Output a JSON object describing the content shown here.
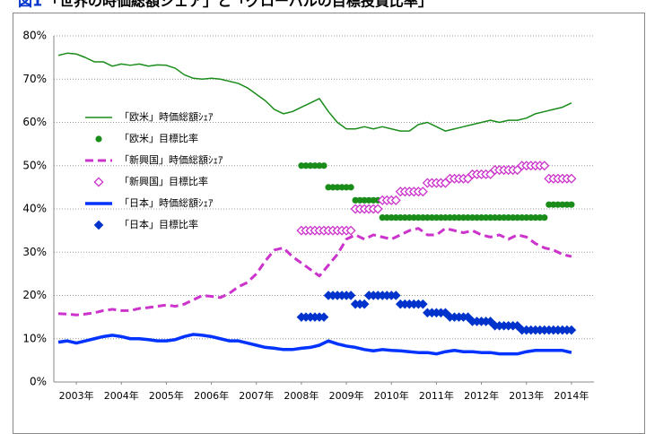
{
  "chart_data": {
    "type": "line",
    "figure_label": "図1",
    "title": "「世界の時価総額シェア」と「グローバルの目標投資比率」",
    "xlim": [
      2002.5,
      2014.5
    ],
    "xticks": [
      {
        "value": 2003,
        "label": "2003年"
      },
      {
        "value": 2004,
        "label": "2004年"
      },
      {
        "value": 2005,
        "label": "2005年"
      },
      {
        "value": 2006,
        "label": "2006年"
      },
      {
        "value": 2007,
        "label": "2007年"
      },
      {
        "value": 2008,
        "label": "2008年"
      },
      {
        "value": 2009,
        "label": "2009年"
      },
      {
        "value": 2010,
        "label": "2010年"
      },
      {
        "value": 2011,
        "label": "2011年"
      },
      {
        "value": 2012,
        "label": "2012年"
      },
      {
        "value": 2013,
        "label": "2013年"
      },
      {
        "value": 2014,
        "label": "2014年"
      }
    ],
    "ylim": [
      0,
      80
    ],
    "yticks": [
      {
        "value": 0,
        "label": "0%"
      },
      {
        "value": 10,
        "label": "10%"
      },
      {
        "value": 20,
        "label": "20%"
      },
      {
        "value": 30,
        "label": "30%"
      },
      {
        "value": 40,
        "label": "40%"
      },
      {
        "value": 50,
        "label": "50%"
      },
      {
        "value": 60,
        "label": "60%"
      },
      {
        "value": 70,
        "label": "70%"
      },
      {
        "value": 80,
        "label": "80%"
      }
    ],
    "grid": true,
    "legend": "upper left",
    "series": [
      {
        "name": "「欧米」時価総額ｼｪｱ",
        "color": "#1a8c1a",
        "width": 1.5,
        "x": [
          2002.6,
          2002.8,
          2003.0,
          2003.2,
          2003.4,
          2003.6,
          2003.8,
          2004.0,
          2004.2,
          2004.4,
          2004.6,
          2004.8,
          2005.0,
          2005.2,
          2005.4,
          2005.6,
          2005.8,
          2006.0,
          2006.2,
          2006.4,
          2006.6,
          2006.8,
          2007.0,
          2007.2,
          2007.4,
          2007.6,
          2007.8,
          2008.0,
          2008.2,
          2008.4,
          2008.6,
          2008.8,
          2009.0,
          2009.2,
          2009.4,
          2009.6,
          2009.8,
          2010.0,
          2010.2,
          2010.4,
          2010.6,
          2010.8,
          2011.0,
          2011.2,
          2011.4,
          2011.6,
          2011.8,
          2012.0,
          2012.2,
          2012.4,
          2012.6,
          2012.8,
          2013.0,
          2013.2,
          2013.4,
          2013.6,
          2013.8,
          2014.0
        ],
        "values": [
          75.5,
          76,
          75.8,
          75,
          74,
          74,
          73,
          73.5,
          73.2,
          73.5,
          73,
          73.3,
          73.2,
          72.5,
          71,
          70.2,
          70,
          70.2,
          70,
          69.5,
          69,
          68,
          66.5,
          65,
          63,
          62,
          62.5,
          63.5,
          64.5,
          65.5,
          62.5,
          60,
          58.5,
          58.5,
          59,
          58.5,
          59,
          58.5,
          58,
          58,
          59.5,
          60,
          59,
          58,
          58.5,
          59,
          59.5,
          60,
          60.5,
          60,
          60.5,
          60.5,
          61,
          62,
          62.5,
          63,
          63.5,
          64.5
        ]
      },
      {
        "name": "「欧米」目標比率",
        "color": "#1a8c1a",
        "marker": "circle",
        "x": [
          2008.0,
          2008.1,
          2008.2,
          2008.3,
          2008.4,
          2008.5,
          2008.6,
          2008.7,
          2008.8,
          2008.9,
          2009.0,
          2009.1,
          2009.2,
          2009.3,
          2009.4,
          2009.5,
          2009.6,
          2009.7,
          2009.8,
          2009.9,
          2010.0,
          2010.1,
          2010.2,
          2010.3,
          2010.4,
          2010.5,
          2010.6,
          2010.7,
          2010.8,
          2010.9,
          2011.0,
          2011.1,
          2011.2,
          2011.3,
          2011.4,
          2011.5,
          2011.6,
          2011.7,
          2011.8,
          2011.9,
          2012.0,
          2012.1,
          2012.2,
          2012.3,
          2012.4,
          2012.5,
          2012.6,
          2012.7,
          2012.8,
          2012.9,
          2013.0,
          2013.1,
          2013.2,
          2013.3,
          2013.4,
          2013.5,
          2013.6,
          2013.7,
          2013.8,
          2013.9,
          2014.0
        ],
        "values": [
          50,
          50,
          50,
          50,
          50,
          50,
          45,
          45,
          45,
          45,
          45,
          45,
          42,
          42,
          42,
          42,
          42,
          42,
          38,
          38,
          38,
          38,
          38,
          38,
          38,
          38,
          38,
          38,
          38,
          38,
          38,
          38,
          38,
          38,
          38,
          38,
          38,
          38,
          38,
          38,
          38,
          38,
          38,
          38,
          38,
          38,
          38,
          38,
          38,
          38,
          38,
          38,
          38,
          38,
          38,
          41,
          41,
          41,
          41,
          41,
          41
        ]
      },
      {
        "name": "「新興国」時価総額ｼｪｱ",
        "color": "#cc33cc",
        "width": 3,
        "dash": true,
        "x": [
          2002.6,
          2002.8,
          2003.0,
          2003.2,
          2003.4,
          2003.6,
          2003.8,
          2004.0,
          2004.2,
          2004.4,
          2004.6,
          2004.8,
          2005.0,
          2005.2,
          2005.4,
          2005.6,
          2005.8,
          2006.0,
          2006.2,
          2006.4,
          2006.6,
          2006.8,
          2007.0,
          2007.2,
          2007.4,
          2007.6,
          2007.8,
          2008.0,
          2008.2,
          2008.4,
          2008.6,
          2008.8,
          2009.0,
          2009.2,
          2009.4,
          2009.6,
          2009.8,
          2010.0,
          2010.2,
          2010.4,
          2010.6,
          2010.8,
          2011.0,
          2011.2,
          2011.4,
          2011.6,
          2011.8,
          2012.0,
          2012.2,
          2012.4,
          2012.6,
          2012.8,
          2013.0,
          2013.2,
          2013.4,
          2013.6,
          2013.8,
          2014.0
        ],
        "values": [
          15.8,
          15.7,
          15.5,
          15.7,
          16,
          16.5,
          16.8,
          16.5,
          16.5,
          17,
          17.2,
          17.5,
          17.8,
          17.5,
          18,
          19,
          20,
          19.8,
          19.5,
          20.5,
          22,
          23,
          25,
          28,
          30.5,
          31,
          29,
          27.5,
          26,
          24.5,
          27,
          29.5,
          33,
          34,
          33,
          34,
          33.5,
          33,
          34,
          35,
          35.5,
          34,
          34,
          35.5,
          35,
          34.5,
          35,
          34,
          33.5,
          34,
          33,
          34,
          33.5,
          32,
          31,
          30.5,
          29.5,
          29
        ]
      },
      {
        "name": "「新興国」目標比率",
        "color": "#cc33cc",
        "marker": "diamond-open",
        "x": [
          2008.0,
          2008.1,
          2008.2,
          2008.3,
          2008.4,
          2008.5,
          2008.6,
          2008.7,
          2008.8,
          2008.9,
          2009.0,
          2009.1,
          2009.2,
          2009.3,
          2009.4,
          2009.5,
          2009.6,
          2009.7,
          2009.8,
          2009.9,
          2010.0,
          2010.1,
          2010.2,
          2010.3,
          2010.4,
          2010.5,
          2010.6,
          2010.7,
          2010.8,
          2010.9,
          2011.0,
          2011.1,
          2011.2,
          2011.3,
          2011.4,
          2011.5,
          2011.6,
          2011.7,
          2011.8,
          2011.9,
          2012.0,
          2012.1,
          2012.2,
          2012.3,
          2012.4,
          2012.5,
          2012.6,
          2012.7,
          2012.8,
          2012.9,
          2013.0,
          2013.1,
          2013.2,
          2013.3,
          2013.4,
          2013.5,
          2013.6,
          2013.7,
          2013.8,
          2013.9,
          2014.0
        ],
        "values": [
          35,
          35,
          35,
          35,
          35,
          35,
          35,
          35,
          35,
          35,
          35,
          35,
          40,
          40,
          40,
          40,
          40,
          40,
          42,
          42,
          42,
          42,
          44,
          44,
          44,
          44,
          44,
          44,
          46,
          46,
          46,
          46,
          46,
          47,
          47,
          47,
          47,
          47,
          48,
          48,
          48,
          48,
          48,
          49,
          49,
          49,
          49,
          49,
          49,
          50,
          50,
          50,
          50,
          50,
          50,
          47,
          47,
          47,
          47,
          47,
          47
        ]
      },
      {
        "name": "「日本」時価総額ｼｪｱ",
        "color": "#0033ff",
        "width": 3.5,
        "x": [
          2002.6,
          2002.8,
          2003.0,
          2003.2,
          2003.4,
          2003.6,
          2003.8,
          2004.0,
          2004.2,
          2004.4,
          2004.6,
          2004.8,
          2005.0,
          2005.2,
          2005.4,
          2005.6,
          2005.8,
          2006.0,
          2006.2,
          2006.4,
          2006.6,
          2006.8,
          2007.0,
          2007.2,
          2007.4,
          2007.6,
          2007.8,
          2008.0,
          2008.2,
          2008.4,
          2008.6,
          2008.8,
          2009.0,
          2009.2,
          2009.4,
          2009.6,
          2009.8,
          2010.0,
          2010.2,
          2010.4,
          2010.6,
          2010.8,
          2011.0,
          2011.2,
          2011.4,
          2011.6,
          2011.8,
          2012.0,
          2012.2,
          2012.4,
          2012.6,
          2012.8,
          2013.0,
          2013.2,
          2013.4,
          2013.6,
          2013.8,
          2014.0
        ],
        "values": [
          9.2,
          9.5,
          9,
          9.5,
          10,
          10.5,
          10.8,
          10.5,
          10,
          10,
          9.8,
          9.5,
          9.5,
          9.8,
          10.5,
          11,
          10.8,
          10.5,
          10,
          9.5,
          9.5,
          9,
          8.5,
          8,
          7.8,
          7.5,
          7.5,
          7.8,
          8,
          8.5,
          9.5,
          8.8,
          8.3,
          8,
          7.5,
          7.2,
          7.5,
          7.3,
          7.2,
          7,
          6.8,
          6.8,
          6.5,
          7,
          7.3,
          7,
          7,
          6.8,
          6.8,
          6.5,
          6.5,
          6.5,
          7,
          7.3,
          7.3,
          7.3,
          7.3,
          6.8
        ]
      },
      {
        "name": "「日本」目標比率",
        "color": "#0033cc",
        "marker": "diamond",
        "x": [
          2008.0,
          2008.1,
          2008.2,
          2008.3,
          2008.4,
          2008.5,
          2008.6,
          2008.7,
          2008.8,
          2008.9,
          2009.0,
          2009.1,
          2009.2,
          2009.3,
          2009.4,
          2009.5,
          2009.6,
          2009.7,
          2009.8,
          2009.9,
          2010.0,
          2010.1,
          2010.2,
          2010.3,
          2010.4,
          2010.5,
          2010.6,
          2010.7,
          2010.8,
          2010.9,
          2011.0,
          2011.1,
          2011.2,
          2011.3,
          2011.4,
          2011.5,
          2011.6,
          2011.7,
          2011.8,
          2011.9,
          2012.0,
          2012.1,
          2012.2,
          2012.3,
          2012.4,
          2012.5,
          2012.6,
          2012.7,
          2012.8,
          2012.9,
          2013.0,
          2013.1,
          2013.2,
          2013.3,
          2013.4,
          2013.5,
          2013.6,
          2013.7,
          2013.8,
          2013.9,
          2014.0
        ],
        "values": [
          15,
          15,
          15,
          15,
          15,
          15,
          20,
          20,
          20,
          20,
          20,
          20,
          18,
          18,
          18,
          20,
          20,
          20,
          20,
          20,
          20,
          20,
          18,
          18,
          18,
          18,
          18,
          18,
          16,
          16,
          16,
          16,
          16,
          15,
          15,
          15,
          15,
          15,
          14,
          14,
          14,
          14,
          14,
          13,
          13,
          13,
          13,
          13,
          13,
          12,
          12,
          12,
          12,
          12,
          12,
          12,
          12,
          12,
          12,
          12,
          12
        ]
      }
    ]
  }
}
